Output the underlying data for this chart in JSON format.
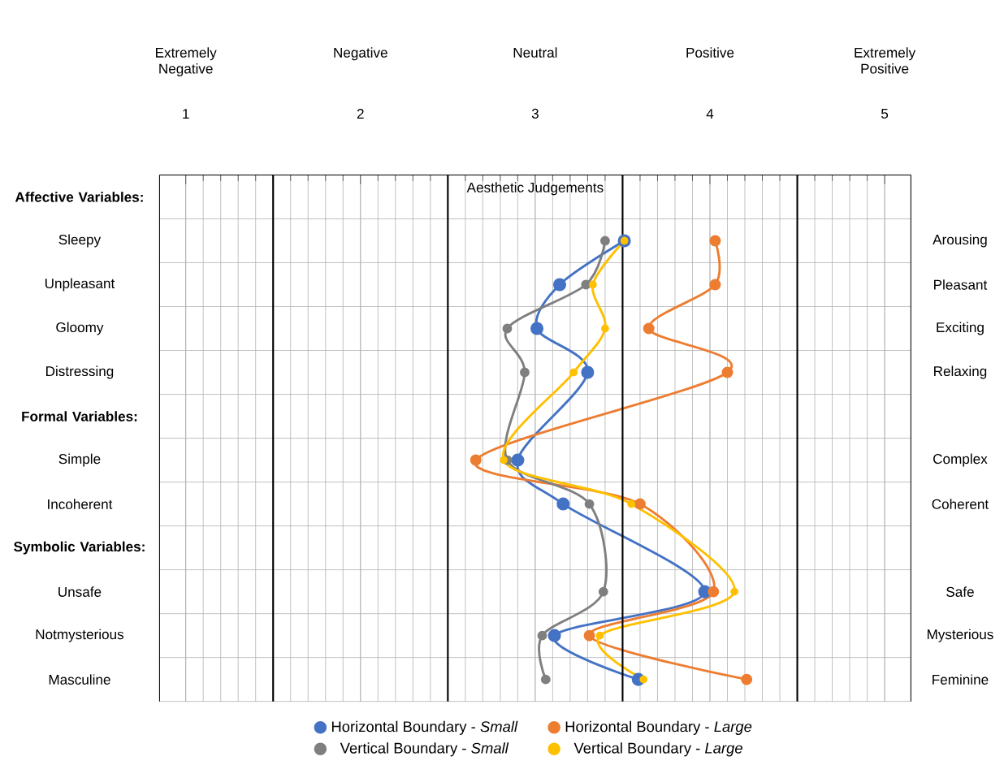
{
  "chart_data": {
    "type": "line",
    "orientation": "horizontal",
    "xlabel": "Aesthetic Judgements",
    "categories": [
      "**Affective Variables:**",
      "Sleepy",
      "Unpleasant",
      "Gloomy",
      "Distressing",
      "**Formal Variables:**",
      "Simple",
      "Incoherent",
      "**Symbolic Variables:**",
      "Unsafe",
      "Notmysterious",
      "Masculine"
    ],
    "y2_categories": [
      null,
      "Arousing",
      "Pleasant",
      "Exciting",
      "Relaxing",
      null,
      "Complex",
      "Coherent",
      null,
      "Safe",
      "Mysterious",
      "Feminine"
    ],
    "xlim": [
      0.85,
      5.15
    ],
    "xticks": [
      1,
      2,
      3,
      4,
      5
    ],
    "annotations": [
      "Extremely Negative",
      "Negative",
      "Neutral",
      "Positive",
      "Extremely Positive"
    ],
    "ref_lines": [
      {
        "axis": "x",
        "value": 1.5
      },
      {
        "axis": "x",
        "value": 2.5
      },
      {
        "axis": "x",
        "value": 3.5
      },
      {
        "axis": "x",
        "value": 4.5
      }
    ],
    "series": [
      {
        "name": "Horizontal Boundary - *Small*",
        "color": "#4472c4",
        "values": [
          null,
          3.51,
          3.14,
          3.01,
          3.3,
          null,
          2.9,
          3.16,
          null,
          3.97,
          3.11,
          3.59
        ]
      },
      {
        "name": "Horizontal Boundary - *Large*",
        "color": "#ed7d31",
        "values": [
          null,
          4.03,
          4.03,
          3.65,
          4.1,
          null,
          2.66,
          3.6,
          null,
          4.02,
          3.31,
          4.21
        ]
      },
      {
        "name": "Vertical Boundary - *Small*",
        "color": "#7f7f7f",
        "values": [
          null,
          3.4,
          3.29,
          2.84,
          2.94,
          null,
          2.84,
          3.31,
          null,
          3.39,
          3.04,
          3.06
        ]
      },
      {
        "name": "Vertical Boundary - *Large*",
        "color": "#ffc000",
        "values": [
          null,
          3.51,
          3.33,
          3.4,
          3.22,
          null,
          2.82,
          3.55,
          null,
          4.14,
          3.37,
          3.62
        ]
      }
    ],
    "grid": true,
    "legend": "bottom",
    "marker": "circle",
    "line_style": "solid"
  }
}
